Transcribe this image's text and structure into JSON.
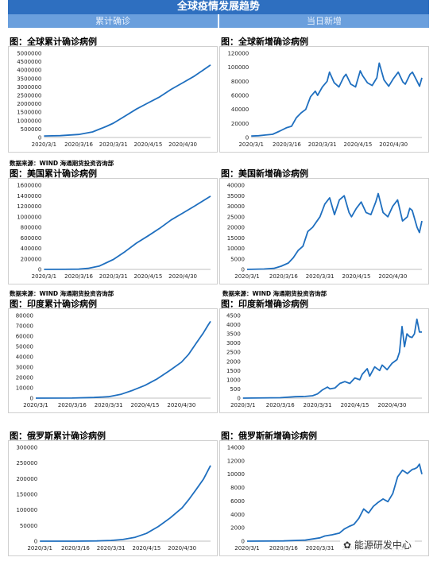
{
  "header": {
    "title": "全球疫情发展趋势",
    "left_label": "累计确诊",
    "right_label": "当日新增"
  },
  "source_note": "数据来源：WIND  海通期货投资咨询部",
  "watermark": "能源研发中心",
  "colors": {
    "line": "#1f6fbf",
    "header": "#2e6fc0",
    "subheader": "#6a9fdd"
  },
  "chart_data": [
    {
      "id": "global-cum",
      "type": "line",
      "title": "图：全球累计确诊病例",
      "x_ticks": [
        "2020/3/1",
        "2020/3/16",
        "2020/3/31",
        "2020/4/15",
        "2020/4/30"
      ],
      "x_start": "2020/3/1",
      "x_end": "2020/5/12",
      "y_ticks": [
        0,
        500000,
        1000000,
        1500000,
        2000000,
        2500000,
        3000000,
        3500000,
        4000000,
        4500000,
        5000000
      ],
      "ylim": [
        0,
        5000000
      ],
      "series": [
        {
          "points": [
            [
              "2020/3/1",
              88000
            ],
            [
              "2020/3/8",
              110000
            ],
            [
              "2020/3/16",
              180000
            ],
            [
              "2020/3/22",
              330000
            ],
            [
              "2020/3/28",
              660000
            ],
            [
              "2020/3/31",
              850000
            ],
            [
              "2020/4/5",
              1270000
            ],
            [
              "2020/4/10",
              1690000
            ],
            [
              "2020/4/15",
              2050000
            ],
            [
              "2020/4/20",
              2410000
            ],
            [
              "2020/4/25",
              2860000
            ],
            [
              "2020/4/30",
              3250000
            ],
            [
              "2020/5/5",
              3640000
            ],
            [
              "2020/5/12",
              4300000
            ]
          ]
        }
      ]
    },
    {
      "id": "global-new",
      "type": "line",
      "title": "图：全球新增确诊病例",
      "x_ticks": [
        "2020/3/1",
        "2020/3/16",
        "2020/3/31",
        "2020/4/15",
        "2020/4/30"
      ],
      "x_start": "2020/3/1",
      "x_end": "2020/5/12",
      "y_ticks": [
        0,
        20000,
        40000,
        60000,
        80000,
        100000,
        120000
      ],
      "ylim": [
        0,
        120000
      ],
      "series": [
        {
          "points": [
            [
              "2020/3/1",
              2000
            ],
            [
              "2020/3/4",
              2500
            ],
            [
              "2020/3/7",
              3500
            ],
            [
              "2020/3/10",
              4500
            ],
            [
              "2020/3/13",
              9000
            ],
            [
              "2020/3/16",
              14000
            ],
            [
              "2020/3/18",
              16000
            ],
            [
              "2020/3/20",
              28000
            ],
            [
              "2020/3/22",
              35000
            ],
            [
              "2020/3/24",
              40000
            ],
            [
              "2020/3/26",
              58000
            ],
            [
              "2020/3/28",
              66000
            ],
            [
              "2020/3/29",
              60000
            ],
            [
              "2020/3/31",
              72000
            ],
            [
              "2020/4/2",
              80000
            ],
            [
              "2020/4/3",
              93000
            ],
            [
              "2020/4/5",
              78000
            ],
            [
              "2020/4/7",
              72000
            ],
            [
              "2020/4/9",
              86000
            ],
            [
              "2020/4/10",
              90000
            ],
            [
              "2020/4/12",
              76000
            ],
            [
              "2020/4/14",
              72000
            ],
            [
              "2020/4/16",
              95000
            ],
            [
              "2020/4/17",
              88000
            ],
            [
              "2020/4/19",
              78000
            ],
            [
              "2020/4/21",
              74000
            ],
            [
              "2020/4/23",
              85000
            ],
            [
              "2020/4/24",
              106000
            ],
            [
              "2020/4/26",
              82000
            ],
            [
              "2020/4/28",
              73000
            ],
            [
              "2020/4/30",
              84000
            ],
            [
              "2020/5/2",
              93000
            ],
            [
              "2020/5/4",
              79000
            ],
            [
              "2020/5/5",
              76000
            ],
            [
              "2020/5/7",
              90000
            ],
            [
              "2020/5/8",
              93000
            ],
            [
              "2020/5/10",
              80000
            ],
            [
              "2020/5/11",
              73000
            ],
            [
              "2020/5/12",
              85000
            ]
          ]
        }
      ]
    },
    {
      "id": "us-cum",
      "type": "line",
      "title": "图：美国累计确诊病例",
      "x_ticks": [
        "2020/3/1",
        "2020/3/16",
        "2020/3/31",
        "2020/4/15",
        "2020/4/30"
      ],
      "x_start": "2020/3/1",
      "x_end": "2020/5/12",
      "y_ticks": [
        0,
        200000,
        400000,
        600000,
        800000,
        1000000,
        1200000,
        1400000,
        1600000
      ],
      "ylim": [
        0,
        1600000
      ],
      "series": [
        {
          "points": [
            [
              "2020/3/1",
              0
            ],
            [
              "2020/3/10",
              1000
            ],
            [
              "2020/3/16",
              4500
            ],
            [
              "2020/3/20",
              19000
            ],
            [
              "2020/3/25",
              65000
            ],
            [
              "2020/3/31",
              188000
            ],
            [
              "2020/4/5",
              337000
            ],
            [
              "2020/4/10",
              500000
            ],
            [
              "2020/4/15",
              637000
            ],
            [
              "2020/4/20",
              780000
            ],
            [
              "2020/4/25",
              940000
            ],
            [
              "2020/4/30",
              1070000
            ],
            [
              "2020/5/5",
              1200000
            ],
            [
              "2020/5/12",
              1390000
            ]
          ]
        }
      ]
    },
    {
      "id": "us-new",
      "type": "line",
      "title": "图：美国新增确诊病例",
      "x_ticks": [
        "2020/3/1",
        "2020/3/16",
        "2020/3/31",
        "2020/4/15",
        "2020/4/30"
      ],
      "x_start": "2020/3/1",
      "x_end": "2020/5/12",
      "y_ticks": [
        0,
        5000,
        10000,
        15000,
        20000,
        25000,
        30000,
        35000,
        40000
      ],
      "ylim": [
        0,
        40000
      ],
      "series": [
        {
          "points": [
            [
              "2020/3/1",
              0
            ],
            [
              "2020/3/8",
              200
            ],
            [
              "2020/3/12",
              500
            ],
            [
              "2020/3/15",
              1500
            ],
            [
              "2020/3/18",
              3000
            ],
            [
              "2020/3/20",
              5500
            ],
            [
              "2020/3/22",
              9000
            ],
            [
              "2020/3/24",
              11000
            ],
            [
              "2020/3/26",
              18000
            ],
            [
              "2020/3/28",
              20000
            ],
            [
              "2020/3/31",
              25000
            ],
            [
              "2020/4/2",
              31000
            ],
            [
              "2020/4/4",
              34000
            ],
            [
              "2020/4/6",
              26000
            ],
            [
              "2020/4/8",
              33000
            ],
            [
              "2020/4/10",
              35000
            ],
            [
              "2020/4/12",
              27000
            ],
            [
              "2020/4/13",
              25000
            ],
            [
              "2020/4/15",
              29000
            ],
            [
              "2020/4/17",
              32000
            ],
            [
              "2020/4/19",
              27000
            ],
            [
              "2020/4/21",
              26000
            ],
            [
              "2020/4/23",
              32000
            ],
            [
              "2020/4/24",
              36000
            ],
            [
              "2020/4/26",
              27000
            ],
            [
              "2020/4/28",
              25000
            ],
            [
              "2020/4/30",
              30000
            ],
            [
              "2020/5/2",
              33000
            ],
            [
              "2020/5/4",
              23000
            ],
            [
              "2020/5/6",
              25000
            ],
            [
              "2020/5/7",
              29000
            ],
            [
              "2020/5/8",
              28000
            ],
            [
              "2020/5/10",
              20000
            ],
            [
              "2020/5/11",
              17500
            ],
            [
              "2020/5/12",
              23000
            ]
          ]
        }
      ]
    },
    {
      "id": "india-cum",
      "type": "line",
      "title": "图：印度累计确诊病例",
      "x_ticks": [
        "2020/3/1",
        "2020/3/16",
        "2020/3/31",
        "2020/4/15",
        "2020/4/30"
      ],
      "x_start": "2020/3/1",
      "x_end": "2020/5/12",
      "y_ticks": [
        0,
        10000,
        20000,
        30000,
        40000,
        50000,
        60000,
        70000,
        80000
      ],
      "ylim": [
        0,
        80000
      ],
      "series": [
        {
          "points": [
            [
              "2020/3/1",
              3
            ],
            [
              "2020/3/16",
              110
            ],
            [
              "2020/3/25",
              600
            ],
            [
              "2020/3/31",
              1400
            ],
            [
              "2020/4/5",
              3600
            ],
            [
              "2020/4/10",
              7600
            ],
            [
              "2020/4/15",
              12400
            ],
            [
              "2020/4/20",
              18600
            ],
            [
              "2020/4/25",
              26500
            ],
            [
              "2020/4/30",
              34800
            ],
            [
              "2020/5/3",
              42500
            ],
            [
              "2020/5/6",
              52900
            ],
            [
              "2020/5/9",
              62900
            ],
            [
              "2020/5/11",
              70700
            ],
            [
              "2020/5/12",
              74300
            ]
          ]
        }
      ]
    },
    {
      "id": "india-new",
      "type": "line",
      "title": "图：印度新增确诊病例",
      "x_ticks": [
        "2020/3/1",
        "2020/3/16",
        "2020/3/31",
        "2020/4/15",
        "2020/4/30"
      ],
      "x_start": "2020/3/1",
      "x_end": "2020/5/12",
      "y_ticks": [
        0,
        500,
        1000,
        1500,
        2000,
        2500,
        3000,
        3500,
        4000,
        4500
      ],
      "ylim": [
        0,
        4500
      ],
      "series": [
        {
          "points": [
            [
              "2020/3/1",
              0
            ],
            [
              "2020/3/16",
              20
            ],
            [
              "2020/3/22",
              80
            ],
            [
              "2020/3/26",
              90
            ],
            [
              "2020/3/29",
              130
            ],
            [
              "2020/3/31",
              230
            ],
            [
              "2020/4/2",
              450
            ],
            [
              "2020/4/4",
              600
            ],
            [
              "2020/4/5",
              500
            ],
            [
              "2020/4/7",
              550
            ],
            [
              "2020/4/9",
              800
            ],
            [
              "2020/4/11",
              900
            ],
            [
              "2020/4/13",
              800
            ],
            [
              "2020/4/15",
              1100
            ],
            [
              "2020/4/17",
              1000
            ],
            [
              "2020/4/18",
              1300
            ],
            [
              "2020/4/20",
              1600
            ],
            [
              "2020/4/21",
              1200
            ],
            [
              "2020/4/23",
              1700
            ],
            [
              "2020/4/25",
              1500
            ],
            [
              "2020/4/26",
              1800
            ],
            [
              "2020/4/28",
              1550
            ],
            [
              "2020/4/30",
              1900
            ],
            [
              "2020/5/2",
              2100
            ],
            [
              "2020/5/3",
              2500
            ],
            [
              "2020/5/4",
              3900
            ],
            [
              "2020/5/5",
              2800
            ],
            [
              "2020/5/6",
              3500
            ],
            [
              "2020/5/7",
              3350
            ],
            [
              "2020/5/8",
              3300
            ],
            [
              "2020/5/9",
              3500
            ],
            [
              "2020/5/10",
              4300
            ],
            [
              "2020/5/11",
              3600
            ],
            [
              "2020/5/12",
              3600
            ]
          ]
        }
      ]
    },
    {
      "id": "russia-cum",
      "type": "line",
      "title": "图：俄罗斯累计确诊病例",
      "x_ticks": [
        "2020/3/1",
        "2020/3/16",
        "2020/3/31",
        "2020/4/15",
        "2020/4/30"
      ],
      "x_start": "2020/3/1",
      "x_end": "2020/5/12",
      "y_ticks": [
        0,
        50000,
        100000,
        150000,
        200000,
        250000,
        300000
      ],
      "ylim": [
        0,
        300000
      ],
      "series": [
        {
          "points": [
            [
              "2020/3/1",
              2
            ],
            [
              "2020/3/16",
              90
            ],
            [
              "2020/3/25",
              660
            ],
            [
              "2020/3/31",
              2300
            ],
            [
              "2020/4/5",
              5400
            ],
            [
              "2020/4/10",
              12000
            ],
            [
              "2020/4/15",
              25000
            ],
            [
              "2020/4/20",
              47000
            ],
            [
              "2020/4/25",
              74500
            ],
            [
              "2020/4/30",
              106500
            ],
            [
              "2020/5/3",
              135000
            ],
            [
              "2020/5/6",
              166000
            ],
            [
              "2020/5/9",
              198600
            ],
            [
              "2020/5/12",
              242000
            ]
          ]
        }
      ]
    },
    {
      "id": "russia-new",
      "type": "line",
      "title": "图：俄罗斯新增确诊病例",
      "x_ticks": [
        "2020/3/1",
        "2020/3/16",
        "2020/3/31",
        "2020/4/15",
        "2020/4/30"
      ],
      "x_start": "2020/3/1",
      "x_end": "2020/5/12",
      "y_ticks": [
        0,
        2000,
        4000,
        6000,
        8000,
        10000,
        12000,
        14000
      ],
      "ylim": [
        0,
        14000
      ],
      "series": [
        {
          "points": [
            [
              "2020/3/1",
              0
            ],
            [
              "2020/3/16",
              30
            ],
            [
              "2020/3/25",
              160
            ],
            [
              "2020/3/31",
              500
            ],
            [
              "2020/4/2",
              770
            ],
            [
              "2020/4/5",
              950
            ],
            [
              "2020/4/8",
              1200
            ],
            [
              "2020/4/10",
              1800
            ],
            [
              "2020/4/12",
              2200
            ],
            [
              "2020/4/14",
              2500
            ],
            [
              "2020/4/16",
              3400
            ],
            [
              "2020/4/18",
              4800
            ],
            [
              "2020/4/20",
              4200
            ],
            [
              "2020/4/22",
              5200
            ],
            [
              "2020/4/24",
              5800
            ],
            [
              "2020/4/26",
              6300
            ],
            [
              "2020/4/28",
              5900
            ],
            [
              "2020/4/30",
              7100
            ],
            [
              "2020/5/2",
              9600
            ],
            [
              "2020/5/4",
              10600
            ],
            [
              "2020/5/6",
              10100
            ],
            [
              "2020/5/8",
              10700
            ],
            [
              "2020/5/9",
              10800
            ],
            [
              "2020/5/10",
              11000
            ],
            [
              "2020/5/11",
              11500
            ],
            [
              "2020/5/12",
              10000
            ]
          ]
        }
      ]
    }
  ]
}
